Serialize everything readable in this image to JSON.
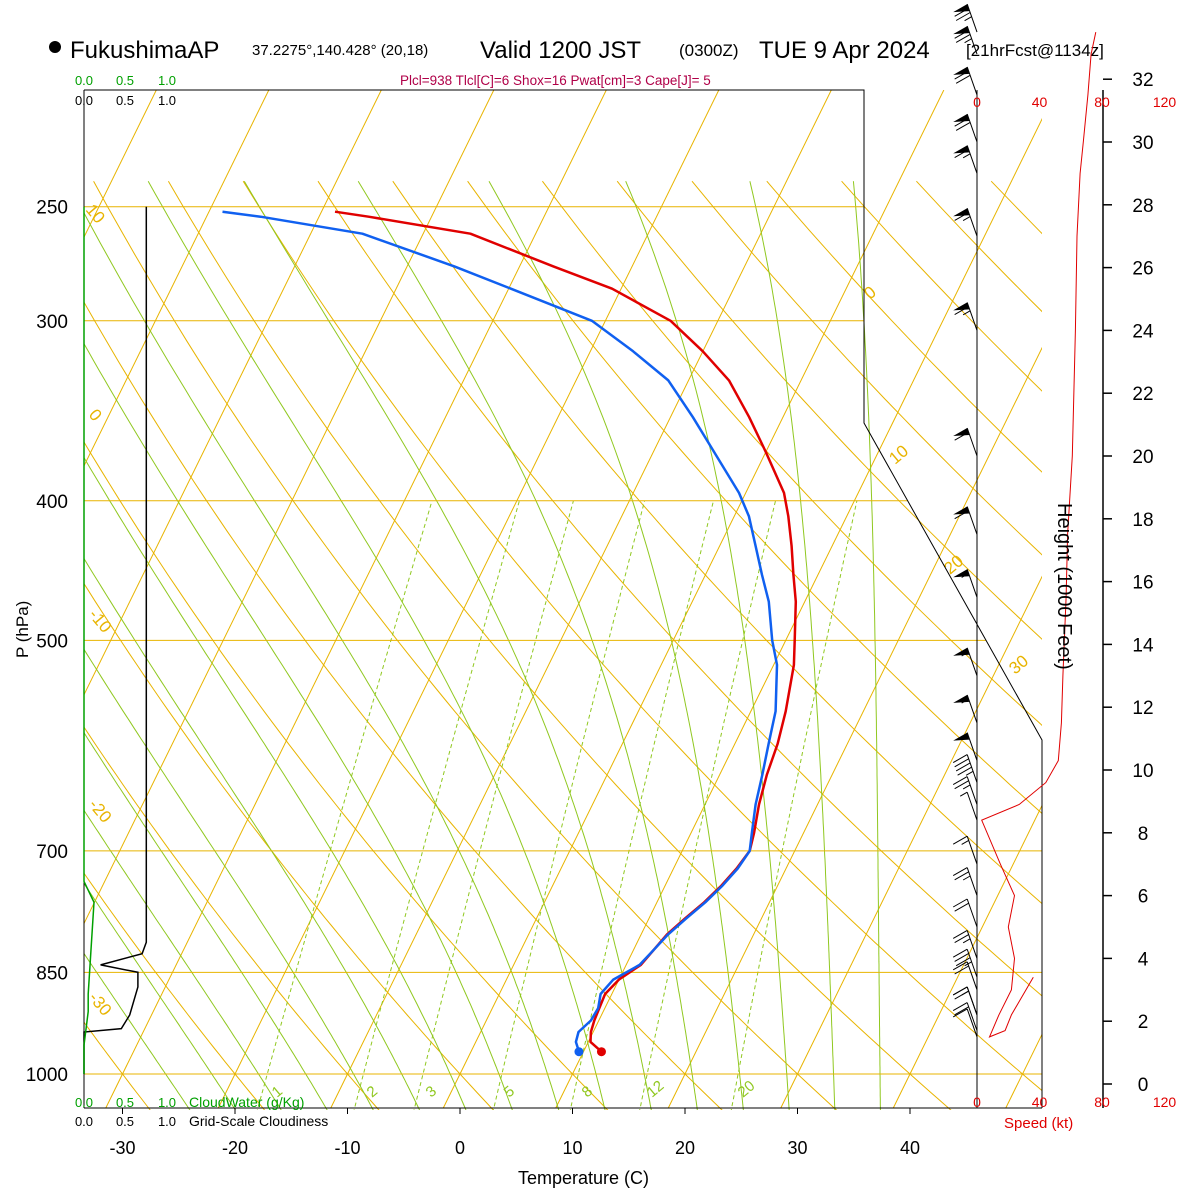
{
  "header": {
    "station": "FukushimaAP",
    "coords": "37.2275°,140.428° (20,18)",
    "valid_main": "Valid 1200 JST",
    "valid_utc": "(0300Z)",
    "valid_date": "TUE 9 Apr 2024",
    "forecast": "[21hrFcst@1134z]",
    "indices": "Plcl=938 Tlcl[C]=6 Shox=16 Pwat[cm]=3 Cape[J]= 5"
  },
  "colors": {
    "isotherm": "#e8b400",
    "dry_adiabat": "#e8b400",
    "moist_adiabat": "#90c820",
    "mixing_ratio": "#90c820",
    "temperature": "#e00000",
    "dewpoint": "#1060f0",
    "cloud_water": "#00a000",
    "cloudiness": "#000000",
    "wind_speed": "#e00000"
  },
  "chart_data": {
    "type": "line",
    "subtype": "skew-T log-P sounding",
    "xlabel": "Temperature (C)",
    "ylabel": "P (hPa)",
    "y2label": "Height (1000 Feet)",
    "x_ticks": [
      -30,
      -20,
      -10,
      0,
      10,
      20,
      30,
      40
    ],
    "x_tick_labels": [
      "-30",
      "-20",
      "-10",
      "0",
      "10",
      "20",
      "30",
      "40"
    ],
    "pressure_ticks": [
      250,
      300,
      400,
      500,
      700,
      850,
      1000
    ],
    "pressure_tick_labels": [
      "250",
      "300",
      "400",
      "500",
      "700",
      "850",
      "1000"
    ],
    "height_ticks": [
      0,
      2,
      4,
      6,
      8,
      10,
      12,
      14,
      16,
      18,
      20,
      22,
      24,
      26,
      28,
      30,
      32
    ],
    "height_tick_labels": [
      "0",
      "2",
      "4",
      "6",
      "8",
      "10",
      "12",
      "14",
      "16",
      "18",
      "20",
      "22",
      "24",
      "26",
      "28",
      "30",
      "32"
    ],
    "speed_ticks": [
      0,
      40,
      80,
      120
    ],
    "speed_tick_labels": [
      "0",
      "40",
      "80",
      "120"
    ],
    "speed_label": "Speed (kt)",
    "cloud_water_ticks": [
      "0.0",
      "0.5",
      "1.0"
    ],
    "cloud_water_label": "CloudWater (g/Kg)",
    "cloudiness_ticks": [
      "0.0",
      "0.5",
      "1.0"
    ],
    "cloudiness_label": "Grid-Scale Cloudiness",
    "dry_adiabat_labels": [
      "10",
      "0",
      "-10",
      "-20",
      "-30",
      "0",
      "10",
      "20",
      "30"
    ],
    "mixing_ratio_labels": [
      "1",
      "2",
      "3",
      "5",
      "8",
      "12",
      "20"
    ],
    "series": [
      {
        "name": "Temperature",
        "points": [
          [
            11.6,
            965
          ],
          [
            10.2,
            950
          ],
          [
            9.8,
            935
          ],
          [
            9.6,
            918
          ],
          [
            9.5,
            900
          ],
          [
            9.4,
            880
          ],
          [
            10.0,
            860
          ],
          [
            11.3,
            840
          ],
          [
            11.8,
            820
          ],
          [
            12.3,
            800
          ],
          [
            13.2,
            780
          ],
          [
            14.2,
            760
          ],
          [
            15.0,
            740
          ],
          [
            15.6,
            720
          ],
          [
            16.0,
            700
          ],
          [
            15.6,
            680
          ],
          [
            14.8,
            650
          ],
          [
            14.2,
            620
          ],
          [
            13.8,
            590
          ],
          [
            13.1,
            560
          ],
          [
            11.8,
            520
          ],
          [
            10.8,
            500
          ],
          [
            9.2,
            470
          ],
          [
            7.8,
            450
          ],
          [
            6.4,
            430
          ],
          [
            4.8,
            410
          ],
          [
            3.4,
            395
          ],
          [
            0.0,
            370
          ],
          [
            -3.0,
            350
          ],
          [
            -6.4,
            330
          ],
          [
            -10.0,
            315
          ],
          [
            -14.2,
            300
          ],
          [
            -20.8,
            285
          ],
          [
            -27.0,
            275
          ],
          [
            -35.8,
            261
          ],
          [
            -45.6,
            254
          ],
          [
            -48.8,
            252
          ]
        ]
      },
      {
        "name": "Dewpoint",
        "points": [
          [
            9.6,
            965
          ],
          [
            8.9,
            950
          ],
          [
            8.7,
            935
          ],
          [
            9.3,
            918
          ],
          [
            9.4,
            900
          ],
          [
            9.0,
            880
          ],
          [
            9.5,
            860
          ],
          [
            11.2,
            840
          ],
          [
            11.8,
            820
          ],
          [
            12.4,
            800
          ],
          [
            13.3,
            780
          ],
          [
            14.3,
            760
          ],
          [
            15.1,
            740
          ],
          [
            15.7,
            720
          ],
          [
            16.0,
            700
          ],
          [
            15.4,
            680
          ],
          [
            14.5,
            650
          ],
          [
            13.8,
            620
          ],
          [
            13.0,
            590
          ],
          [
            12.2,
            560
          ],
          [
            10.3,
            520
          ],
          [
            8.8,
            500
          ],
          [
            6.8,
            470
          ],
          [
            5.0,
            450
          ],
          [
            3.2,
            430
          ],
          [
            1.3,
            410
          ],
          [
            -0.6,
            395
          ],
          [
            -4.6,
            370
          ],
          [
            -8.0,
            350
          ],
          [
            -11.8,
            330
          ],
          [
            -16.2,
            315
          ],
          [
            -21.2,
            300
          ],
          [
            -29.8,
            285
          ],
          [
            -35.8,
            275
          ],
          [
            -45.4,
            261
          ],
          [
            -55.2,
            254
          ],
          [
            -58.8,
            252
          ]
        ]
      }
    ],
    "wind_speed_profile": [
      [
        36,
        3.4
      ],
      [
        22,
        2.2
      ],
      [
        18,
        1.7
      ],
      [
        8,
        1.5
      ],
      [
        14,
        2.2
      ],
      [
        22,
        3.0
      ],
      [
        24,
        4.0
      ],
      [
        20,
        5.0
      ],
      [
        24,
        6.0
      ],
      [
        15,
        7.0
      ],
      [
        3,
        8.4
      ],
      [
        27,
        8.9
      ],
      [
        44,
        9.6
      ],
      [
        52,
        10.3
      ],
      [
        54,
        11.5
      ],
      [
        55,
        13.0
      ],
      [
        57,
        15.5
      ],
      [
        58,
        17.5
      ],
      [
        61,
        20.0
      ],
      [
        63,
        24.0
      ],
      [
        64,
        27.0
      ],
      [
        66,
        29.0
      ],
      [
        68,
        30.0
      ],
      [
        71,
        31.5
      ],
      [
        73,
        32.8
      ],
      [
        76,
        33.5
      ]
    ],
    "cloud_water_profile": [
      [
        0.0,
        1000
      ],
      [
        0.0,
        955
      ],
      [
        0.05,
        905
      ],
      [
        0.05,
        880
      ],
      [
        0.12,
        760
      ],
      [
        0.0,
        735
      ],
      [
        0.0,
        250
      ]
    ],
    "cloudiness_profile": [
      [
        0.0,
        1000
      ],
      [
        0.0,
        935
      ],
      [
        0.45,
        930
      ],
      [
        0.55,
        910
      ],
      [
        0.65,
        870
      ],
      [
        0.65,
        850
      ],
      [
        0.2,
        840
      ],
      [
        0.7,
        825
      ],
      [
        0.75,
        810
      ],
      [
        0.75,
        250
      ]
    ]
  }
}
